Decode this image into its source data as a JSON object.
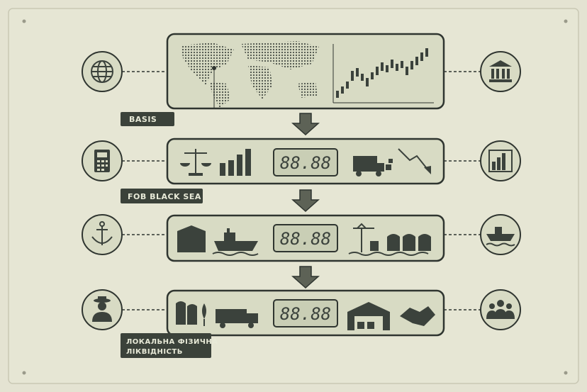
{
  "labels": {
    "basis": "BASIS",
    "fob": "FOB BLACK SEA",
    "local": [
      "ЛОКАЛЬНА ФІЗИЧНА",
      "ЛІКВІДНІСТЬ"
    ]
  },
  "displays": [
    "88.88",
    "88.88",
    "88.88"
  ]
}
